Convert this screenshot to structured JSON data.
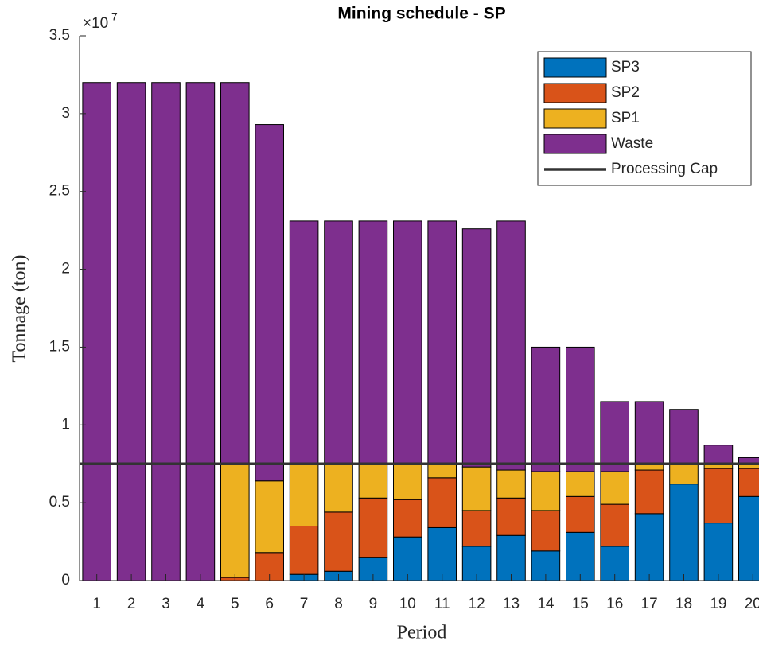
{
  "chart_data": {
    "type": "stacked_bar",
    "title": "Mining schedule - SP",
    "x_label": "Period",
    "y_label": "Tonnage (ton)",
    "y_multiplier_base": "×10",
    "y_multiplier_exponent": "7",
    "categories": [
      "1",
      "2",
      "3",
      "4",
      "5",
      "6",
      "7",
      "8",
      "9",
      "10",
      "11",
      "12",
      "13",
      "14",
      "15",
      "16",
      "17",
      "18",
      "19",
      "20"
    ],
    "series": [
      {
        "name": "SP3",
        "color": "#0072BD",
        "values": [
          0,
          0,
          0,
          0,
          0,
          0,
          0.04,
          0.06,
          0.15,
          0.28,
          0.34,
          0.22,
          0.29,
          0.19,
          0.31,
          0.22,
          0.43,
          0.62,
          0.37,
          0.54
        ]
      },
      {
        "name": "SP2",
        "color": "#D95319",
        "values": [
          0,
          0,
          0,
          0,
          0.02,
          0.18,
          0.31,
          0.38,
          0.38,
          0.24,
          0.32,
          0.23,
          0.24,
          0.26,
          0.23,
          0.27,
          0.28,
          0,
          0.35,
          0.18
        ]
      },
      {
        "name": "SP1",
        "color": "#EDB120",
        "values": [
          0,
          0,
          0,
          0,
          0.73,
          0.46,
          0.4,
          0.31,
          0.22,
          0.23,
          0.09,
          0.28,
          0.18,
          0.25,
          0.16,
          0.21,
          0.04,
          0.13,
          0.03,
          0.03
        ]
      },
      {
        "name": "Waste",
        "color": "#7E2F8E",
        "values": [
          3.2,
          3.2,
          3.2,
          3.2,
          2.45,
          2.29,
          1.56,
          1.56,
          1.56,
          1.56,
          1.56,
          1.53,
          1.6,
          0.8,
          0.8,
          0.45,
          0.4,
          0.35,
          0.12,
          0.04
        ]
      }
    ],
    "processing_cap": {
      "name": "Processing Cap",
      "value": 0.75,
      "color": "#333333"
    },
    "ylim": [
      0,
      3.5
    ],
    "yticks": [
      0,
      0.5,
      1,
      1.5,
      2,
      2.5,
      3,
      3.5
    ],
    "legend": "upper right"
  }
}
